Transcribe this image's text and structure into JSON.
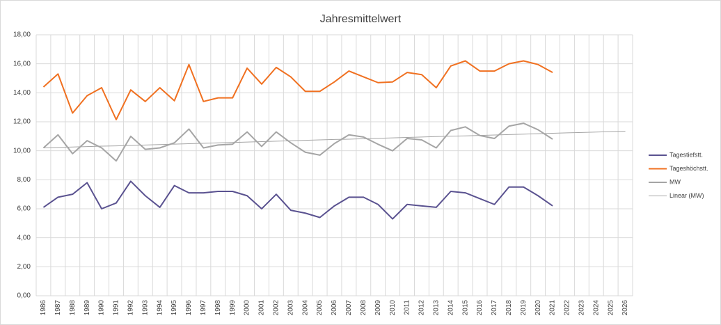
{
  "chart_data": {
    "type": "line",
    "title": "Jahresmittelwert",
    "categories": [
      "1986",
      "1987",
      "1988",
      "1989",
      "1990",
      "1991",
      "1992",
      "1993",
      "1994",
      "1995",
      "1996",
      "1997",
      "1998",
      "1999",
      "2000",
      "2001",
      "2002",
      "2003",
      "2004",
      "2005",
      "2006",
      "2007",
      "2008",
      "2009",
      "2010",
      "2011",
      "2012",
      "2013",
      "2014",
      "2015",
      "2016",
      "2017",
      "2018",
      "2019",
      "2020",
      "2021",
      "2022",
      "2023",
      "2024",
      "2025",
      "2026"
    ],
    "series": [
      {
        "name": "Tagestiefstt.",
        "color": "#5a5290",
        "width": 2,
        "values": [
          6.1,
          6.8,
          7.0,
          7.8,
          6.0,
          6.4,
          7.9,
          6.9,
          6.1,
          7.6,
          7.1,
          7.1,
          7.2,
          7.2,
          6.9,
          6.0,
          7.0,
          5.9,
          5.7,
          5.4,
          6.2,
          6.8,
          6.8,
          6.3,
          5.3,
          6.3,
          6.2,
          6.1,
          7.2,
          7.1,
          6.7,
          6.3,
          7.5,
          7.5,
          6.9,
          6.2,
          null,
          null,
          null,
          null,
          null
        ]
      },
      {
        "name": "Tageshöchstt.",
        "color": "#f07020",
        "width": 2,
        "values": [
          14.4,
          15.3,
          12.6,
          13.8,
          14.35,
          12.15,
          14.2,
          13.4,
          14.35,
          13.45,
          15.95,
          13.4,
          13.65,
          13.65,
          15.7,
          14.6,
          15.75,
          15.1,
          14.1,
          14.1,
          14.75,
          15.5,
          15.1,
          14.7,
          14.75,
          15.4,
          15.25,
          14.35,
          15.85,
          16.2,
          15.5,
          15.5,
          16.0,
          16.2,
          15.95,
          15.4,
          null,
          null,
          null,
          null,
          null
        ]
      },
      {
        "name": "MW",
        "color": "#a5a5a5",
        "width": 2,
        "values": [
          10.2,
          11.1,
          9.8,
          10.7,
          10.2,
          9.3,
          11.0,
          10.1,
          10.2,
          10.55,
          11.5,
          10.2,
          10.4,
          10.45,
          11.3,
          10.3,
          11.3,
          10.55,
          9.9,
          9.7,
          10.5,
          11.1,
          10.95,
          10.45,
          10.0,
          10.85,
          10.75,
          10.2,
          11.4,
          11.65,
          11.05,
          10.85,
          11.7,
          11.9,
          11.45,
          10.8,
          null,
          null,
          null,
          null,
          null
        ]
      },
      {
        "name": "Linear (MW)",
        "color": "#a5a5a5",
        "width": 1,
        "values": [
          10.2,
          10.23,
          10.26,
          10.29,
          10.32,
          10.34,
          10.37,
          10.4,
          10.43,
          10.46,
          10.49,
          10.52,
          10.55,
          10.57,
          10.6,
          10.63,
          10.66,
          10.69,
          10.72,
          10.75,
          10.78,
          10.8,
          10.83,
          10.86,
          10.89,
          10.92,
          10.95,
          10.98,
          11.01,
          11.03,
          11.06,
          11.09,
          11.12,
          11.15,
          11.18,
          11.21,
          11.24,
          11.26,
          11.29,
          11.32,
          11.35
        ]
      }
    ],
    "ylim": [
      0,
      18
    ],
    "yticks": [
      {
        "value": 0,
        "label": "0,00"
      },
      {
        "value": 2,
        "label": "2,00"
      },
      {
        "value": 4,
        "label": "4,00"
      },
      {
        "value": 6,
        "label": "6,00"
      },
      {
        "value": 8,
        "label": "8,00"
      },
      {
        "value": 10,
        "label": "10,00"
      },
      {
        "value": 12,
        "label": "12,00"
      },
      {
        "value": 14,
        "label": "14,00"
      },
      {
        "value": 16,
        "label": "16,00"
      },
      {
        "value": 18,
        "label": "18,00"
      }
    ],
    "grid": true,
    "legend": "right"
  }
}
